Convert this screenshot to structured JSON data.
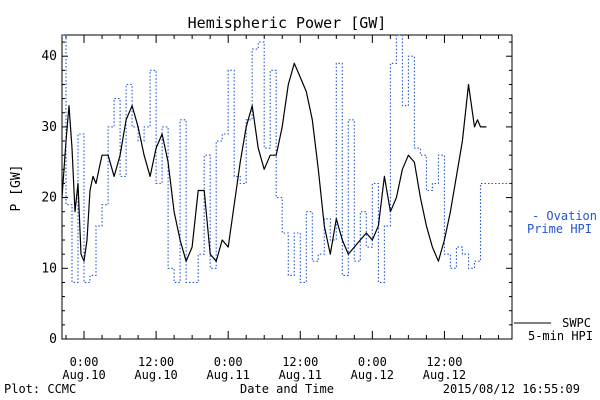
{
  "chart_data": {
    "type": "line",
    "title": "Hemispheric Power [GW]",
    "xlabel": "Date and Time",
    "ylabel": "P [GW]",
    "ylim": [
      0,
      43
    ],
    "yticks": [
      0,
      10,
      20,
      30,
      40
    ],
    "xlim": [
      "2015-08-09T20:20",
      "2015-08-12T23:15"
    ],
    "xticks": [
      {
        "t": "2015-08-10T00:00",
        "time": "0:00",
        "date": "Aug.10"
      },
      {
        "t": "2015-08-10T12:00",
        "time": "12:00",
        "date": "Aug.10"
      },
      {
        "t": "2015-08-11T00:00",
        "time": "0:00",
        "date": "Aug.11"
      },
      {
        "t": "2015-08-11T12:00",
        "time": "12:00",
        "date": "Aug.11"
      },
      {
        "t": "2015-08-12T00:00",
        "time": "0:00",
        "date": "Aug.12"
      },
      {
        "t": "2015-08-12T12:00",
        "time": "12:00",
        "date": "Aug.12"
      }
    ],
    "minor_tick_hours": 3,
    "footer_left": "Plot: CCMC",
    "footer_right": "2015/08/12 16:55:09",
    "series": [
      {
        "name": "SWPC 5-min HPI",
        "legend_lines": [
          "SWPC",
          "5-min HPI"
        ],
        "color": "#000000",
        "style": "solid",
        "x": [
          "2015-08-09T20:20",
          "2015-08-09T21:00",
          "2015-08-09T21:30",
          "2015-08-09T22:00",
          "2015-08-09T22:30",
          "2015-08-09T23:00",
          "2015-08-09T23:30",
          "2015-08-10T00:00",
          "2015-08-10T00:30",
          "2015-08-10T01:00",
          "2015-08-10T01:30",
          "2015-08-10T02:00",
          "2015-08-10T02:30",
          "2015-08-10T03:00",
          "2015-08-10T04:00",
          "2015-08-10T05:00",
          "2015-08-10T06:00",
          "2015-08-10T07:00",
          "2015-08-10T08:00",
          "2015-08-10T09:00",
          "2015-08-10T10:00",
          "2015-08-10T11:00",
          "2015-08-10T12:00",
          "2015-08-10T13:00",
          "2015-08-10T14:00",
          "2015-08-10T15:00",
          "2015-08-10T16:00",
          "2015-08-10T17:00",
          "2015-08-10T18:00",
          "2015-08-10T19:00",
          "2015-08-10T20:00",
          "2015-08-10T21:00",
          "2015-08-10T22:00",
          "2015-08-10T23:00",
          "2015-08-11T00:00",
          "2015-08-11T01:00",
          "2015-08-11T02:00",
          "2015-08-11T03:00",
          "2015-08-11T04:00",
          "2015-08-11T05:00",
          "2015-08-11T06:00",
          "2015-08-11T07:00",
          "2015-08-11T08:00",
          "2015-08-11T09:00",
          "2015-08-11T10:00",
          "2015-08-11T11:00",
          "2015-08-11T12:00",
          "2015-08-11T13:00",
          "2015-08-11T14:00",
          "2015-08-11T15:00",
          "2015-08-11T16:00",
          "2015-08-11T17:00",
          "2015-08-11T18:00",
          "2015-08-11T19:00",
          "2015-08-11T20:00",
          "2015-08-11T21:00",
          "2015-08-11T22:00",
          "2015-08-11T23:00",
          "2015-08-12T00:00",
          "2015-08-12T01:00",
          "2015-08-12T02:00",
          "2015-08-12T03:00",
          "2015-08-12T04:00",
          "2015-08-12T05:00",
          "2015-08-12T06:00",
          "2015-08-12T07:00",
          "2015-08-12T08:00",
          "2015-08-12T09:00",
          "2015-08-12T10:00",
          "2015-08-12T11:00",
          "2015-08-12T12:00",
          "2015-08-12T13:00",
          "2015-08-12T14:00",
          "2015-08-12T15:00",
          "2015-08-12T16:00",
          "2015-08-12T16:30",
          "2015-08-12T17:00",
          "2015-08-12T17:30",
          "2015-08-12T18:00",
          "2015-08-12T18:30",
          "2015-08-12T19:00"
        ],
        "y": [
          20,
          28,
          33,
          27,
          18,
          22,
          12,
          11,
          14,
          21,
          23,
          22,
          24,
          26,
          26,
          23,
          26,
          31,
          33,
          30,
          26,
          23,
          27,
          29,
          25,
          18,
          14,
          11,
          13,
          21,
          21,
          12,
          11,
          14,
          13,
          19,
          25,
          30,
          33,
          27,
          24,
          26,
          26,
          30,
          36,
          39,
          37,
          35,
          31,
          24,
          16,
          12,
          17,
          14,
          12,
          13,
          14,
          15,
          14,
          16,
          23,
          18,
          20,
          24,
          26,
          25,
          20,
          16,
          13,
          11,
          14,
          18,
          23,
          28,
          36,
          33,
          30,
          31,
          30,
          30,
          30
        ]
      },
      {
        "name": "Ovation Prime HPI",
        "legend_lines": [
          "- Ovation",
          "Prime HPI"
        ],
        "color": "#2255cc",
        "style": "dotted-step",
        "x": [
          "2015-08-09T20:20",
          "2015-08-09T21:00",
          "2015-08-09T22:00",
          "2015-08-09T23:00",
          "2015-08-10T00:00",
          "2015-08-10T01:00",
          "2015-08-10T02:00",
          "2015-08-10T03:00",
          "2015-08-10T04:00",
          "2015-08-10T05:00",
          "2015-08-10T06:00",
          "2015-08-10T07:00",
          "2015-08-10T08:00",
          "2015-08-10T09:00",
          "2015-08-10T10:00",
          "2015-08-10T11:00",
          "2015-08-10T12:00",
          "2015-08-10T13:00",
          "2015-08-10T14:00",
          "2015-08-10T15:00",
          "2015-08-10T16:00",
          "2015-08-10T17:00",
          "2015-08-10T18:00",
          "2015-08-10T19:00",
          "2015-08-10T20:00",
          "2015-08-10T21:00",
          "2015-08-10T22:00",
          "2015-08-10T23:00",
          "2015-08-11T00:00",
          "2015-08-11T01:00",
          "2015-08-11T02:00",
          "2015-08-11T03:00",
          "2015-08-11T04:00",
          "2015-08-11T05:00",
          "2015-08-11T06:00",
          "2015-08-11T07:00",
          "2015-08-11T08:00",
          "2015-08-11T09:00",
          "2015-08-11T10:00",
          "2015-08-11T11:00",
          "2015-08-11T12:00",
          "2015-08-11T13:00",
          "2015-08-11T14:00",
          "2015-08-11T15:00",
          "2015-08-11T16:00",
          "2015-08-11T17:00",
          "2015-08-11T18:00",
          "2015-08-11T19:00",
          "2015-08-11T20:00",
          "2015-08-11T21:00",
          "2015-08-11T22:00",
          "2015-08-11T23:00",
          "2015-08-12T00:00",
          "2015-08-12T01:00",
          "2015-08-12T02:00",
          "2015-08-12T03:00",
          "2015-08-12T04:00",
          "2015-08-12T05:00",
          "2015-08-12T06:00",
          "2015-08-12T07:00",
          "2015-08-12T08:00",
          "2015-08-12T09:00",
          "2015-08-12T10:00",
          "2015-08-12T11:00",
          "2015-08-12T12:00",
          "2015-08-12T13:00",
          "2015-08-12T14:00",
          "2015-08-12T15:00",
          "2015-08-12T16:00",
          "2015-08-12T17:00",
          "2015-08-12T18:00"
        ],
        "y": [
          43,
          19,
          8,
          29,
          8,
          9,
          16,
          19,
          30,
          34,
          23,
          36,
          30,
          28,
          30,
          38,
          22,
          30,
          10,
          8,
          31,
          8,
          8,
          12,
          26,
          10,
          28,
          29,
          38,
          23,
          22,
          31,
          41,
          42,
          27,
          38,
          20,
          15,
          9,
          15,
          8,
          18,
          11,
          12,
          17,
          14,
          39,
          9,
          31,
          11,
          18,
          13,
          22,
          8,
          16,
          39,
          43,
          33,
          40,
          27,
          26,
          21,
          22,
          26,
          12,
          10,
          13,
          12,
          10,
          11,
          22
        ]
      }
    ]
  }
}
